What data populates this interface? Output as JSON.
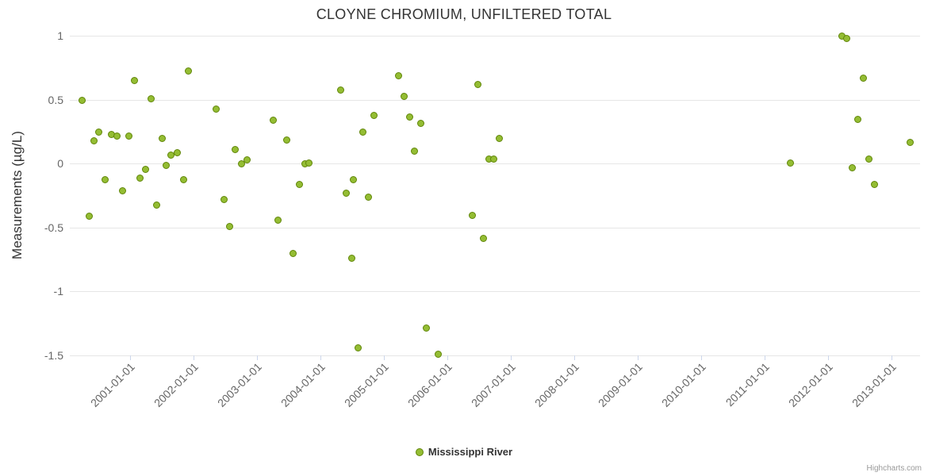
{
  "chart": {
    "credits_label": "Highcharts.com"
  },
  "chart_data": {
    "type": "scatter",
    "title": "CLOYNE CHROMIUM, UNFILTERED TOTAL",
    "xlabel": "",
    "ylabel": "Measurements (µg/L)",
    "ylim": [
      -1.5,
      1
    ],
    "xlim": [
      2000.05,
      2013.45
    ],
    "grid": true,
    "legend_position": "bottom-center",
    "gridline_color": "#e6e6e6",
    "tick_color": "#ccd6eb",
    "y_ticks": [
      {
        "v": 1,
        "label": "1"
      },
      {
        "v": 0.5,
        "label": "0.5"
      },
      {
        "v": 0,
        "label": "0"
      },
      {
        "v": -0.5,
        "label": "-0.5"
      },
      {
        "v": -1,
        "label": "-1"
      },
      {
        "v": -1.5,
        "label": "-1.5"
      }
    ],
    "x_ticks": [
      {
        "v": 2001,
        "label": "2001-01-01"
      },
      {
        "v": 2002,
        "label": "2002-01-01"
      },
      {
        "v": 2003,
        "label": "2003-01-01"
      },
      {
        "v": 2004,
        "label": "2004-01-01"
      },
      {
        "v": 2005,
        "label": "2005-01-01"
      },
      {
        "v": 2006,
        "label": "2006-01-01"
      },
      {
        "v": 2007,
        "label": "2007-01-01"
      },
      {
        "v": 2008,
        "label": "2008-01-01"
      },
      {
        "v": 2009,
        "label": "2009-01-01"
      },
      {
        "v": 2010,
        "label": "2010-01-01"
      },
      {
        "v": 2011,
        "label": "2011-01-01"
      },
      {
        "v": 2012,
        "label": "2012-01-01"
      },
      {
        "v": 2013,
        "label": "2013-01-01"
      }
    ],
    "series": [
      {
        "name": "Mississippi River",
        "color": "#94bd33",
        "border_color": "#61860a",
        "points": [
          [
            2000.24,
            0.5
          ],
          [
            2000.35,
            -0.41
          ],
          [
            2000.43,
            0.18
          ],
          [
            2000.5,
            0.25
          ],
          [
            2000.6,
            -0.12
          ],
          [
            2000.7,
            0.23
          ],
          [
            2000.79,
            0.22
          ],
          [
            2000.88,
            -0.21
          ],
          [
            2000.98,
            0.22
          ],
          [
            2001.06,
            0.65
          ],
          [
            2001.15,
            -0.11
          ],
          [
            2001.24,
            -0.04
          ],
          [
            2001.33,
            0.51
          ],
          [
            2001.41,
            -0.32
          ],
          [
            2001.5,
            0.2
          ],
          [
            2001.56,
            -0.01
          ],
          [
            2001.64,
            0.07
          ],
          [
            2001.74,
            0.09
          ],
          [
            2001.84,
            -0.12
          ],
          [
            2001.91,
            0.73
          ],
          [
            2002.35,
            0.43
          ],
          [
            2002.48,
            -0.28
          ],
          [
            2002.56,
            -0.49
          ],
          [
            2002.65,
            0.11
          ],
          [
            2002.75,
            0.0
          ],
          [
            2002.84,
            0.03
          ],
          [
            2003.25,
            0.34
          ],
          [
            2003.33,
            -0.44
          ],
          [
            2003.46,
            0.19
          ],
          [
            2003.56,
            -0.7
          ],
          [
            2003.66,
            -0.16
          ],
          [
            2003.75,
            0.0
          ],
          [
            2003.81,
            0.01
          ],
          [
            2004.31,
            0.58
          ],
          [
            2004.4,
            -0.23
          ],
          [
            2004.49,
            -0.74
          ],
          [
            2004.51,
            -0.12
          ],
          [
            2004.59,
            -1.44
          ],
          [
            2004.66,
            0.25
          ],
          [
            2004.75,
            -0.26
          ],
          [
            2004.84,
            0.38
          ],
          [
            2005.23,
            0.69
          ],
          [
            2005.31,
            0.53
          ],
          [
            2005.4,
            0.37
          ],
          [
            2005.48,
            0.1
          ],
          [
            2005.58,
            0.32
          ],
          [
            2005.66,
            -1.28
          ],
          [
            2005.85,
            -1.49
          ],
          [
            2006.39,
            -0.4
          ],
          [
            2006.48,
            0.62
          ],
          [
            2006.56,
            -0.58
          ],
          [
            2006.65,
            0.04
          ],
          [
            2006.73,
            0.04
          ],
          [
            2006.81,
            0.2
          ],
          [
            2011.4,
            0.01
          ],
          [
            2012.21,
            1.0
          ],
          [
            2012.29,
            0.98
          ],
          [
            2012.38,
            -0.03
          ],
          [
            2012.46,
            0.35
          ],
          [
            2012.55,
            0.67
          ],
          [
            2012.64,
            0.04
          ],
          [
            2012.73,
            -0.16
          ],
          [
            2013.29,
            0.17
          ]
        ]
      }
    ]
  }
}
